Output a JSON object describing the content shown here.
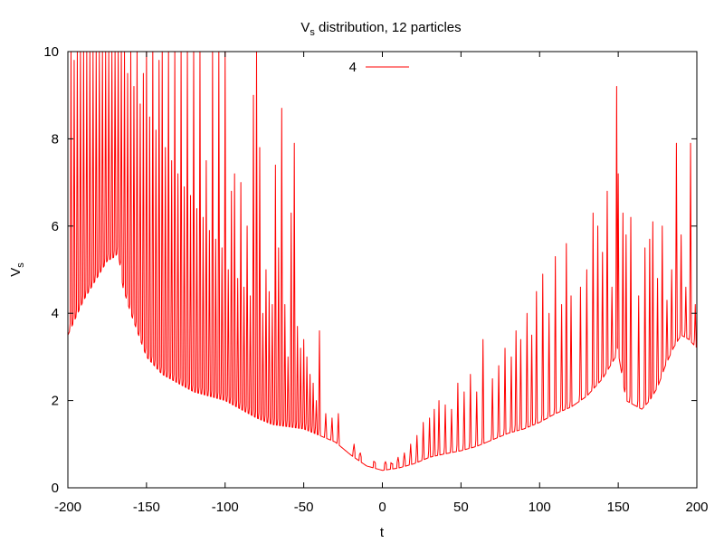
{
  "chart_data": {
    "type": "line",
    "title_main": "V",
    "title_sub": "s",
    "title_rest": " distribution, 12 particles",
    "xlabel": "t",
    "ylabel_main": "V",
    "ylabel_sub": "s",
    "xlim": [
      -200,
      200
    ],
    "ylim": [
      0,
      10
    ],
    "xticks": [
      -200,
      -150,
      -100,
      -50,
      0,
      50,
      100,
      150,
      200
    ],
    "yticks": [
      0,
      2,
      4,
      6,
      8,
      10
    ],
    "grid": false,
    "legend_position": "top-center",
    "series": [
      {
        "name": "4",
        "color": "#ff0000",
        "baseline": [
          [
            -200,
            3.5
          ],
          [
            -195,
            3.9
          ],
          [
            -190,
            4.3
          ],
          [
            -185,
            4.6
          ],
          [
            -180,
            4.9
          ],
          [
            -175,
            5.2
          ],
          [
            -170,
            5.3
          ],
          [
            -168,
            5.4
          ],
          [
            -165,
            4.6
          ],
          [
            -160,
            4.0
          ],
          [
            -150,
            3.0
          ],
          [
            -140,
            2.6
          ],
          [
            -130,
            2.4
          ],
          [
            -120,
            2.2
          ],
          [
            -110,
            2.1
          ],
          [
            -100,
            2.0
          ],
          [
            -90,
            1.8
          ],
          [
            -80,
            1.6
          ],
          [
            -70,
            1.45
          ],
          [
            -60,
            1.4
          ],
          [
            -50,
            1.35
          ],
          [
            -40,
            1.2
          ],
          [
            -30,
            1.05
          ],
          [
            -20,
            0.75
          ],
          [
            -10,
            0.5
          ],
          [
            0,
            0.4
          ],
          [
            10,
            0.45
          ],
          [
            20,
            0.55
          ],
          [
            30,
            0.7
          ],
          [
            40,
            0.78
          ],
          [
            50,
            0.85
          ],
          [
            60,
            0.95
          ],
          [
            70,
            1.1
          ],
          [
            80,
            1.25
          ],
          [
            90,
            1.35
          ],
          [
            100,
            1.5
          ],
          [
            110,
            1.7
          ],
          [
            120,
            1.85
          ],
          [
            130,
            2.1
          ],
          [
            135,
            2.3
          ],
          [
            140,
            2.5
          ],
          [
            145,
            2.8
          ],
          [
            150,
            3.1
          ],
          [
            155,
            2.0
          ],
          [
            160,
            1.9
          ],
          [
            165,
            1.8
          ],
          [
            170,
            2.0
          ],
          [
            175,
            2.3
          ],
          [
            180,
            2.8
          ],
          [
            185,
            3.2
          ],
          [
            190,
            3.5
          ],
          [
            195,
            3.4
          ],
          [
            200,
            3.2
          ]
        ],
        "peaks": [
          [
            -198,
            10
          ],
          [
            -196,
            9.8
          ],
          [
            -194,
            10
          ],
          [
            -192,
            10
          ],
          [
            -190,
            10
          ],
          [
            -188,
            10
          ],
          [
            -186,
            10
          ],
          [
            -184,
            10
          ],
          [
            -182,
            10
          ],
          [
            -180,
            10
          ],
          [
            -178,
            10
          ],
          [
            -176,
            10
          ],
          [
            -174,
            10
          ],
          [
            -172,
            10
          ],
          [
            -170,
            10
          ],
          [
            -168,
            10
          ],
          [
            -166,
            10
          ],
          [
            -164,
            10
          ],
          [
            -162,
            9.5
          ],
          [
            -160,
            10
          ],
          [
            -158,
            9.2
          ],
          [
            -156,
            10
          ],
          [
            -154,
            8.8
          ],
          [
            -152,
            9.5
          ],
          [
            -150,
            10
          ],
          [
            -148,
            8.5
          ],
          [
            -146,
            10
          ],
          [
            -144,
            8.2
          ],
          [
            -142,
            9.8
          ],
          [
            -140,
            10
          ],
          [
            -138,
            7.8
          ],
          [
            -136,
            10
          ],
          [
            -134,
            7.5
          ],
          [
            -132,
            10
          ],
          [
            -130,
            7.2
          ],
          [
            -128,
            10
          ],
          [
            -126,
            6.9
          ],
          [
            -124,
            10
          ],
          [
            -122,
            6.7
          ],
          [
            -120,
            10
          ],
          [
            -118,
            6.4
          ],
          [
            -116,
            10
          ],
          [
            -114,
            6.2
          ],
          [
            -112,
            7.5
          ],
          [
            -110,
            5.9
          ],
          [
            -108,
            10
          ],
          [
            -106,
            5.7
          ],
          [
            -104,
            10
          ],
          [
            -102,
            5.5
          ],
          [
            -100,
            10
          ],
          [
            -98,
            5.0
          ],
          [
            -96,
            6.8
          ],
          [
            -94,
            7.2
          ],
          [
            -92,
            4.8
          ],
          [
            -90,
            7.0
          ],
          [
            -88,
            4.6
          ],
          [
            -86,
            6.0
          ],
          [
            -84,
            4.4
          ],
          [
            -82,
            9.0
          ],
          [
            -80,
            10
          ],
          [
            -78,
            7.8
          ],
          [
            -76,
            4.0
          ],
          [
            -74,
            5.0
          ],
          [
            -72,
            4.5
          ],
          [
            -70,
            4.2
          ],
          [
            -68,
            7.4
          ],
          [
            -66,
            5.5
          ],
          [
            -64,
            8.7
          ],
          [
            -62,
            4.2
          ],
          [
            -60,
            3.0
          ],
          [
            -58,
            6.3
          ],
          [
            -56,
            7.9
          ],
          [
            -54,
            3.7
          ],
          [
            -52,
            3.2
          ],
          [
            -50,
            3.4
          ],
          [
            -48,
            3.0
          ],
          [
            -46,
            2.6
          ],
          [
            -44,
            2.4
          ],
          [
            -42,
            2.0
          ],
          [
            -40,
            3.6
          ],
          [
            -36,
            1.7
          ],
          [
            -32,
            1.6
          ],
          [
            -28,
            1.7
          ],
          [
            -18,
            1.0
          ],
          [
            -14,
            0.8
          ],
          [
            -5,
            0.6
          ],
          [
            2,
            0.6
          ],
          [
            6,
            0.55
          ],
          [
            10,
            0.7
          ],
          [
            14,
            0.8
          ],
          [
            18,
            1.0
          ],
          [
            22,
            1.2
          ],
          [
            26,
            1.5
          ],
          [
            30,
            1.6
          ],
          [
            33,
            1.8
          ],
          [
            36,
            2.0
          ],
          [
            40,
            1.9
          ],
          [
            44,
            1.8
          ],
          [
            48,
            2.4
          ],
          [
            52,
            2.2
          ],
          [
            56,
            2.6
          ],
          [
            60,
            2.2
          ],
          [
            64,
            3.4
          ],
          [
            70,
            2.5
          ],
          [
            74,
            2.8
          ],
          [
            78,
            3.2
          ],
          [
            82,
            3.0
          ],
          [
            85,
            3.6
          ],
          [
            88,
            3.4
          ],
          [
            92,
            4.0
          ],
          [
            95,
            3.5
          ],
          [
            98,
            4.5
          ],
          [
            102,
            4.9
          ],
          [
            106,
            4.0
          ],
          [
            110,
            5.3
          ],
          [
            114,
            4.2
          ],
          [
            117,
            5.6
          ],
          [
            120,
            4.4
          ],
          [
            126,
            4.6
          ],
          [
            130,
            5.0
          ],
          [
            134,
            6.3
          ],
          [
            137,
            6.0
          ],
          [
            140,
            5.4
          ],
          [
            143,
            6.8
          ],
          [
            146,
            4.6
          ],
          [
            149,
            9.2
          ],
          [
            150,
            7.2
          ],
          [
            153,
            6.3
          ],
          [
            155,
            5.8
          ],
          [
            158,
            6.2
          ],
          [
            163,
            4.4
          ],
          [
            167,
            5.5
          ],
          [
            170,
            5.7
          ],
          [
            172,
            6.1
          ],
          [
            175,
            4.8
          ],
          [
            178,
            6.0
          ],
          [
            181,
            4.3
          ],
          [
            184,
            5.0
          ],
          [
            187,
            7.9
          ],
          [
            190,
            5.8
          ],
          [
            193,
            4.6
          ],
          [
            196,
            7.9
          ],
          [
            199,
            4.2
          ]
        ]
      }
    ]
  }
}
